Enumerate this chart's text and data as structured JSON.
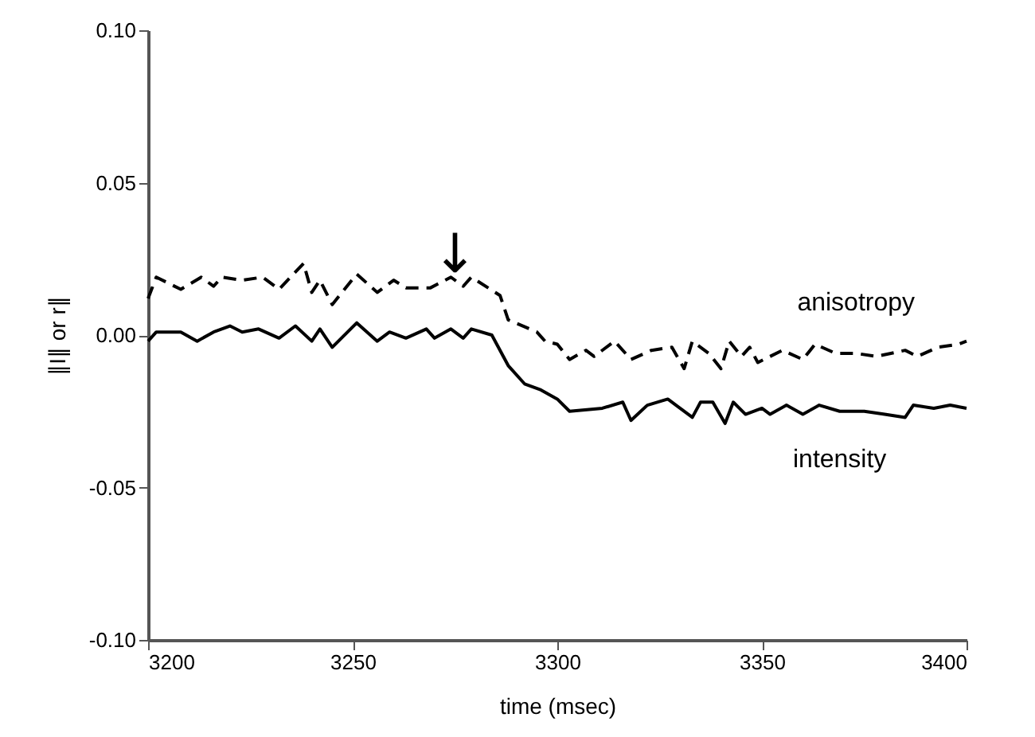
{
  "chart_data": {
    "type": "line",
    "xlabel": "time (msec)",
    "ylabel": "∥I∥ or r∥",
    "xlim": [
      3200,
      3400
    ],
    "xticks": [
      3200,
      3250,
      3300,
      3350,
      3400
    ],
    "ylim": [
      -0.1,
      0.1
    ],
    "yticks": [
      {
        "value": -0.1,
        "label": "-0.10"
      },
      {
        "value": -0.05,
        "label": "-0.05"
      },
      {
        "value": 0,
        "label": "0.00"
      },
      {
        "value": 0.05,
        "label": "0.05"
      },
      {
        "value": 0.1,
        "label": "0.10"
      }
    ],
    "grid": false,
    "legend": false,
    "marker": "none",
    "annotations": [
      {
        "text": "↓",
        "x": 3275,
        "y": 0.02
      }
    ],
    "series": [
      {
        "name": "anisotropy",
        "color": "#000000",
        "line_style": "dashed",
        "x": [
          3200,
          3202,
          3208,
          3213,
          3216,
          3218,
          3223,
          3228,
          3232,
          3238,
          3240,
          3242,
          3245,
          3251,
          3256,
          3260,
          3263,
          3269,
          3274,
          3277,
          3279,
          3286,
          3288,
          3295,
          3297,
          3300,
          3303,
          3307,
          3309,
          3314,
          3318,
          3323,
          3328,
          3331,
          3333,
          3337,
          3340,
          3342,
          3345,
          3347,
          3349,
          3355,
          3360,
          3363,
          3368,
          3373,
          3378,
          3385,
          3388,
          3393,
          3398,
          3400
        ],
        "values": [
          0.012,
          0.019,
          0.015,
          0.019,
          0.016,
          0.019,
          0.018,
          0.019,
          0.015,
          0.0235,
          0.014,
          0.018,
          0.01,
          0.02,
          0.014,
          0.018,
          0.0155,
          0.0155,
          0.019,
          0.016,
          0.019,
          0.013,
          0.005,
          0.001,
          -0.002,
          -0.003,
          -0.008,
          -0.005,
          -0.007,
          -0.002,
          -0.008,
          -0.005,
          -0.004,
          -0.011,
          -0.002,
          -0.006,
          -0.011,
          -0.002,
          -0.007,
          -0.004,
          -0.009,
          -0.005,
          -0.008,
          -0.003,
          -0.006,
          -0.006,
          -0.007,
          -0.005,
          -0.007,
          -0.004,
          -0.003,
          -0.002
        ]
      },
      {
        "name": "intensity",
        "color": "#000000",
        "line_style": "solid",
        "x": [
          3200,
          3202,
          3208,
          3212,
          3216,
          3220,
          3223,
          3227,
          3232,
          3236,
          3240,
          3242,
          3245,
          3251,
          3256,
          3259,
          3263,
          3268,
          3270,
          3274,
          3277,
          3279,
          3284,
          3288,
          3292,
          3296,
          3300,
          3303,
          3311,
          3316,
          3318,
          3322,
          3327,
          3333,
          3335,
          3338,
          3341,
          3343,
          3346,
          3350,
          3352,
          3356,
          3360,
          3364,
          3369,
          3375,
          3380,
          3385,
          3387,
          3392,
          3396,
          3400
        ],
        "values": [
          -0.002,
          0.001,
          0.001,
          -0.002,
          0.001,
          0.003,
          0.001,
          0.002,
          -0.001,
          0.003,
          -0.002,
          0.002,
          -0.004,
          0.004,
          -0.002,
          0.001,
          -0.001,
          0.002,
          -0.001,
          0.002,
          -0.001,
          0.002,
          0.0,
          -0.01,
          -0.016,
          -0.018,
          -0.021,
          -0.025,
          -0.024,
          -0.022,
          -0.028,
          -0.023,
          -0.021,
          -0.027,
          -0.022,
          -0.022,
          -0.029,
          -0.022,
          -0.026,
          -0.024,
          -0.026,
          -0.023,
          -0.026,
          -0.023,
          -0.025,
          -0.025,
          -0.026,
          -0.027,
          -0.023,
          -0.024,
          -0.023,
          -0.024
        ]
      }
    ]
  }
}
